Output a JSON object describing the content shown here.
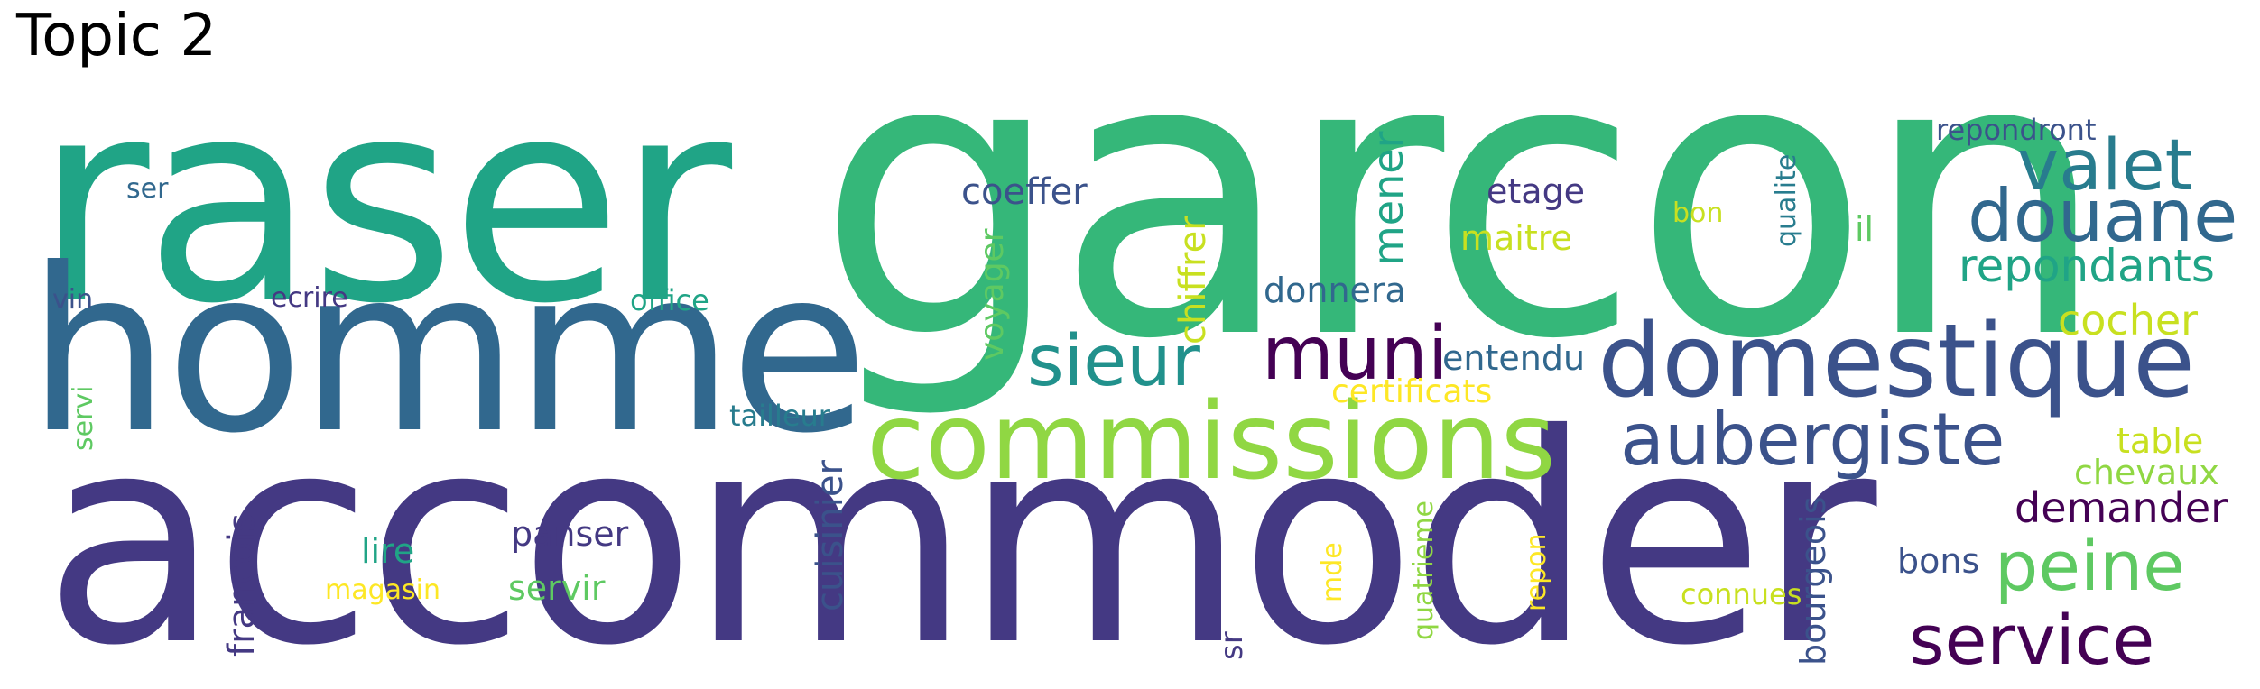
{
  "title": "Topic 2",
  "words": {
    "accommoder": "accommoder",
    "garcon": "garcon",
    "raser": "raser",
    "homme": "homme",
    "domestique": "domestique",
    "commissions": "commissions",
    "douane": "douane",
    "valet": "valet",
    "sieur": "sieur",
    "muni": "muni",
    "aubergiste": "aubergiste",
    "service": "service",
    "peine": "peine",
    "repondants": "repondants",
    "cocher": "cocher",
    "demander": "demander",
    "mener": "mener",
    "coeffer": "coeffer",
    "etage": "etage",
    "donnera": "donnera",
    "chiffrer": "chiffrer",
    "voyager": "voyager",
    "maitre": "maitre",
    "entendu": "entendu",
    "certificats": "certificats",
    "chevaux": "chevaux",
    "table": "table",
    "bons": "bons",
    "connues": "connues",
    "bourgeois": "bourgeois",
    "cuisinier": "cuisinier",
    "francois": "francois",
    "panser": "panser",
    "servir": "servir",
    "lire": "lire",
    "magasin": "magasin",
    "tailleur": "tailleur",
    "office": "office",
    "ecrire": "ecrire",
    "vin": "vin",
    "ser": "ser",
    "servi": "servi",
    "repondront": "repondront",
    "qualite": "qualite",
    "bon": "bon",
    "il": "il",
    "quatrieme": "quatrieme",
    "repon": "repon",
    "mde": "mde",
    "sr": "sr"
  },
  "colors": {
    "dark_purple": "#440154",
    "indigo": "#443983",
    "slate_blue": "#3b528b",
    "steel_blue": "#31688e",
    "teal_blue": "#287c8e",
    "teal": "#21918c",
    "sea_green": "#20a486",
    "green": "#35b779",
    "light_green": "#5ec962",
    "lime": "#90d743",
    "yellow_green": "#c8e020",
    "yellow": "#fde725"
  }
}
